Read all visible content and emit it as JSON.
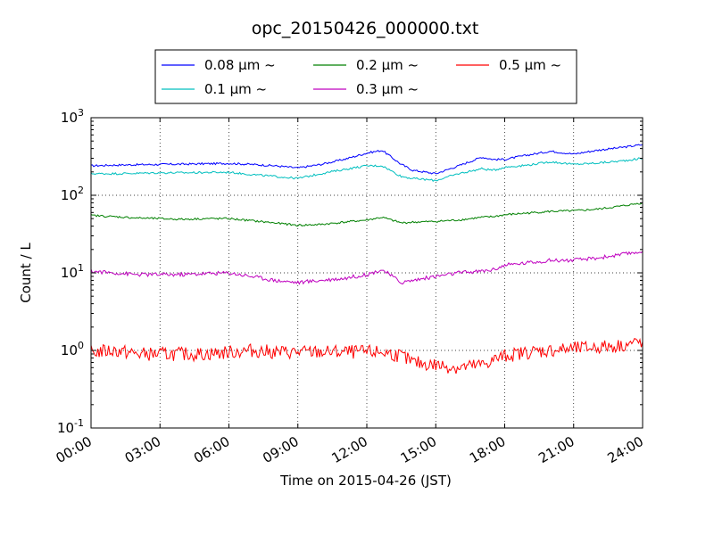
{
  "chart_data": {
    "type": "line",
    "title": "opc_20150426_000000.txt",
    "xlabel": "Time on 2015-04-26 (JST)",
    "ylabel": "Count / L",
    "y_scale": "log",
    "ylim": [
      0.1,
      1000
    ],
    "xlim": [
      "00:00",
      "24:00"
    ],
    "x_ticks": [
      "00:00",
      "03:00",
      "06:00",
      "09:00",
      "12:00",
      "15:00",
      "18:00",
      "21:00",
      "24:00"
    ],
    "y_ticks": [
      {
        "base": "10",
        "exp": "-1"
      },
      {
        "base": "10",
        "exp": "0"
      },
      {
        "base": "10",
        "exp": "1"
      },
      {
        "base": "10",
        "exp": "2"
      },
      {
        "base": "10",
        "exp": "3"
      }
    ],
    "grid": true,
    "legend_position": "top-center",
    "series": [
      {
        "name": "0.08 μm ~",
        "color": "#0000ff",
        "x": [
          "00:00",
          "01:00",
          "02:00",
          "03:00",
          "04:00",
          "05:00",
          "06:00",
          "07:00",
          "08:00",
          "09:00",
          "10:00",
          "11:00",
          "12:00",
          "12:40",
          "13:30",
          "14:00",
          "15:00",
          "16:00",
          "17:00",
          "17:30",
          "18:00",
          "19:00",
          "20:00",
          "21:00",
          "22:00",
          "23:00",
          "24:00"
        ],
        "values": [
          240,
          245,
          248,
          250,
          252,
          255,
          258,
          250,
          240,
          225,
          250,
          290,
          350,
          380,
          250,
          210,
          190,
          240,
          310,
          290,
          290,
          330,
          370,
          340,
          380,
          410,
          450
        ]
      },
      {
        "name": "0.1 μm ~",
        "color": "#00bfbf",
        "x": [
          "00:00",
          "01:00",
          "02:00",
          "03:00",
          "04:00",
          "05:00",
          "06:00",
          "07:00",
          "08:00",
          "09:00",
          "10:00",
          "11:00",
          "12:00",
          "12:40",
          "13:30",
          "14:00",
          "15:00",
          "16:00",
          "17:00",
          "17:30",
          "18:00",
          "19:00",
          "20:00",
          "21:00",
          "22:00",
          "23:00",
          "24:00"
        ],
        "values": [
          190,
          190,
          192,
          195,
          195,
          197,
          198,
          185,
          175,
          165,
          190,
          215,
          240,
          240,
          175,
          165,
          155,
          190,
          220,
          210,
          230,
          245,
          270,
          250,
          260,
          275,
          300
        ]
      },
      {
        "name": "0.2 μm ~",
        "color": "#008000",
        "x": [
          "00:00",
          "01:00",
          "02:00",
          "03:00",
          "04:00",
          "05:00",
          "06:00",
          "07:00",
          "08:00",
          "09:00",
          "10:00",
          "11:00",
          "12:00",
          "12:40",
          "13:30",
          "14:00",
          "15:00",
          "16:00",
          "17:00",
          "17:30",
          "18:00",
          "19:00",
          "20:00",
          "21:00",
          "22:00",
          "23:00",
          "24:00"
        ],
        "values": [
          55,
          53,
          51,
          50,
          49,
          50,
          50,
          47,
          44,
          41,
          42,
          45,
          48,
          52,
          44,
          45,
          46,
          48,
          52,
          53,
          56,
          59,
          62,
          63,
          66,
          72,
          80
        ]
      },
      {
        "name": "0.3 μm ~",
        "color": "#bf00bf",
        "x": [
          "00:00",
          "01:00",
          "02:00",
          "03:00",
          "04:00",
          "05:00",
          "06:00",
          "07:00",
          "08:00",
          "09:00",
          "10:00",
          "11:00",
          "12:00",
          "12:40",
          "13:30",
          "14:00",
          "15:00",
          "16:00",
          "17:00",
          "17:30",
          "18:00",
          "19:00",
          "20:00",
          "21:00",
          "22:00",
          "23:00",
          "24:00"
        ],
        "values": [
          10.5,
          10,
          9.5,
          9.5,
          9.5,
          9.8,
          10,
          9,
          8,
          7.5,
          8,
          8.5,
          9.5,
          11,
          7.5,
          8,
          9,
          10,
          10.5,
          11,
          12.5,
          13.5,
          14.5,
          14.5,
          15.5,
          17,
          19
        ]
      },
      {
        "name": "0.5 μm ~",
        "color": "#ff0000",
        "x": [
          "00:00",
          "01:00",
          "02:00",
          "03:00",
          "04:00",
          "05:00",
          "06:00",
          "07:00",
          "08:00",
          "09:00",
          "10:00",
          "11:00",
          "12:00",
          "12:40",
          "13:30",
          "14:00",
          "15:00",
          "16:00",
          "17:00",
          "17:30",
          "18:00",
          "19:00",
          "20:00",
          "21:00",
          "22:00",
          "23:00",
          "24:00"
        ],
        "values": [
          0.95,
          1.0,
          0.9,
          0.9,
          0.9,
          0.9,
          0.95,
          1.0,
          0.95,
          0.95,
          0.95,
          0.95,
          0.95,
          0.95,
          0.85,
          0.7,
          0.65,
          0.6,
          0.65,
          0.75,
          0.85,
          0.95,
          1.0,
          1.05,
          1.1,
          1.15,
          1.3
        ]
      }
    ]
  }
}
